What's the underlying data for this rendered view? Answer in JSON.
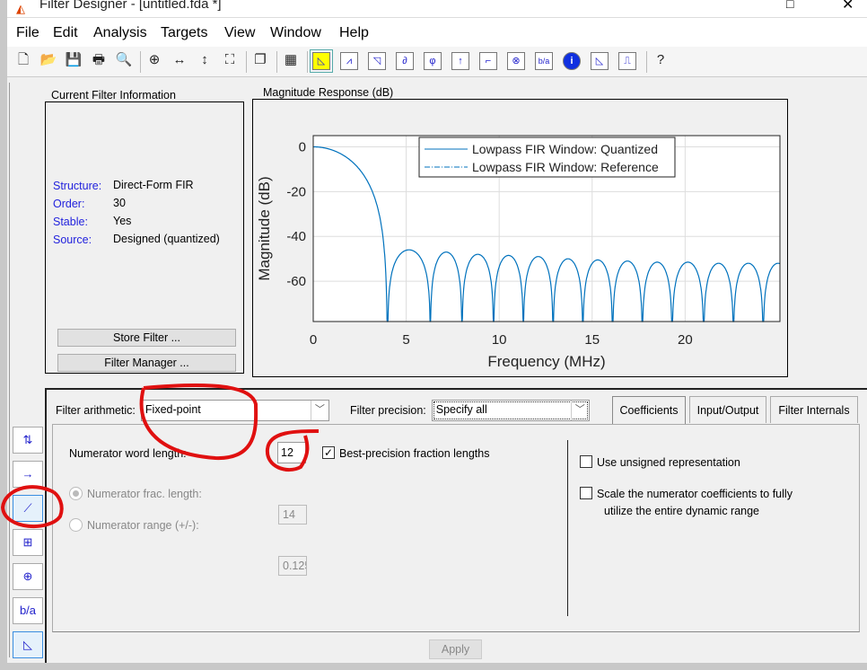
{
  "window": {
    "title": "Filter Designer - [untitled.fda *]"
  },
  "menu": [
    "File",
    "Edit",
    "Analysis",
    "Targets",
    "View",
    "Window",
    "Help"
  ],
  "toolbar": [
    "new-icon",
    "open-icon",
    "save-icon",
    "print-icon",
    "print-preview-icon",
    "zoom-in-icon",
    "zoom-x-icon",
    "zoom-y-icon",
    "full-view-icon",
    "new-figure-icon",
    "send-to-figure-icon",
    "magnitude-response-icon",
    "phase-response-icon",
    "magnitude-phase-icon",
    "group-delay-icon",
    "phase-delay-icon",
    "impulse-response-icon",
    "step-response-icon",
    "pole-zero-icon",
    "filter-coefficients-icon",
    "filter-information-icon",
    "magnitude-estimate-icon",
    "round-off-noise-icon",
    "whats-this-icon"
  ],
  "info_panel": {
    "title": "Current Filter Information",
    "rows": [
      {
        "label": "Structure:",
        "value": "Direct-Form FIR"
      },
      {
        "label": "Order:",
        "value": "30"
      },
      {
        "label": "Stable:",
        "value": "Yes"
      },
      {
        "label": "Source:",
        "value": "Designed (quantized)"
      }
    ],
    "store_filter": "Store Filter ...",
    "filter_manager": "Filter Manager ..."
  },
  "plot_panel": {
    "title": "Magnitude Response (dB)"
  },
  "chart_data": {
    "type": "line",
    "xlabel": "Frequency (MHz)",
    "ylabel": "Magnitude (dB)",
    "xlim": [
      0,
      25.1
    ],
    "ylim": [
      -78,
      5
    ],
    "xticks": [
      0,
      5,
      10,
      15,
      20
    ],
    "yticks": [
      0,
      -20,
      -40,
      -60
    ],
    "grid": true,
    "legend_placement": "top-right",
    "color": "#0072bd",
    "series": [
      {
        "name": "Lowpass FIR Window: Quantized",
        "style": "solid"
      },
      {
        "name": "Lowpass FIR Window: Reference",
        "style": "dash-dot"
      }
    ],
    "nulls_mhz": [
      4.0,
      6.3,
      8.0,
      9.7,
      11.3,
      12.9,
      14.5,
      16.1,
      17.7,
      19.3,
      21.0,
      22.6,
      24.2,
      25.8
    ],
    "sidelobe_peaks_db": [
      -46,
      -47,
      -48,
      -48.5,
      -49,
      -50,
      -50.5,
      -51,
      -51.5,
      -51.5,
      -52,
      -52,
      -52
    ]
  },
  "bottom": {
    "arith_label": "Filter arithmetic:",
    "arith_value": "Fixed-point",
    "precision_label": "Filter precision:",
    "precision_value": "Specify all",
    "tabs": [
      "Coefficients",
      "Input/Output",
      "Filter Internals"
    ],
    "num_word_label": "Numerator word length:",
    "num_word_value": "12",
    "best_precision": "Best-precision fraction lengths",
    "best_precision_checked": true,
    "num_frac_label": "Numerator frac. length:",
    "num_frac_value": "14",
    "num_range_label": "Numerator range (+/-):",
    "num_range_value": "0.125",
    "unsigned": "Use unsigned representation",
    "scale_line1": "Scale the numerator coefficients to fully",
    "scale_line2": "utilize the entire dynamic range",
    "apply": "Apply"
  },
  "sidebar": [
    "sample-rate-conversion-icon",
    "transform-filter-icon",
    "set-quantization-icon",
    "realize-model-icon",
    "pole-zero-editor-icon",
    "import-filter-icon",
    "design-filter-icon"
  ],
  "annotation_color": "#e01010"
}
